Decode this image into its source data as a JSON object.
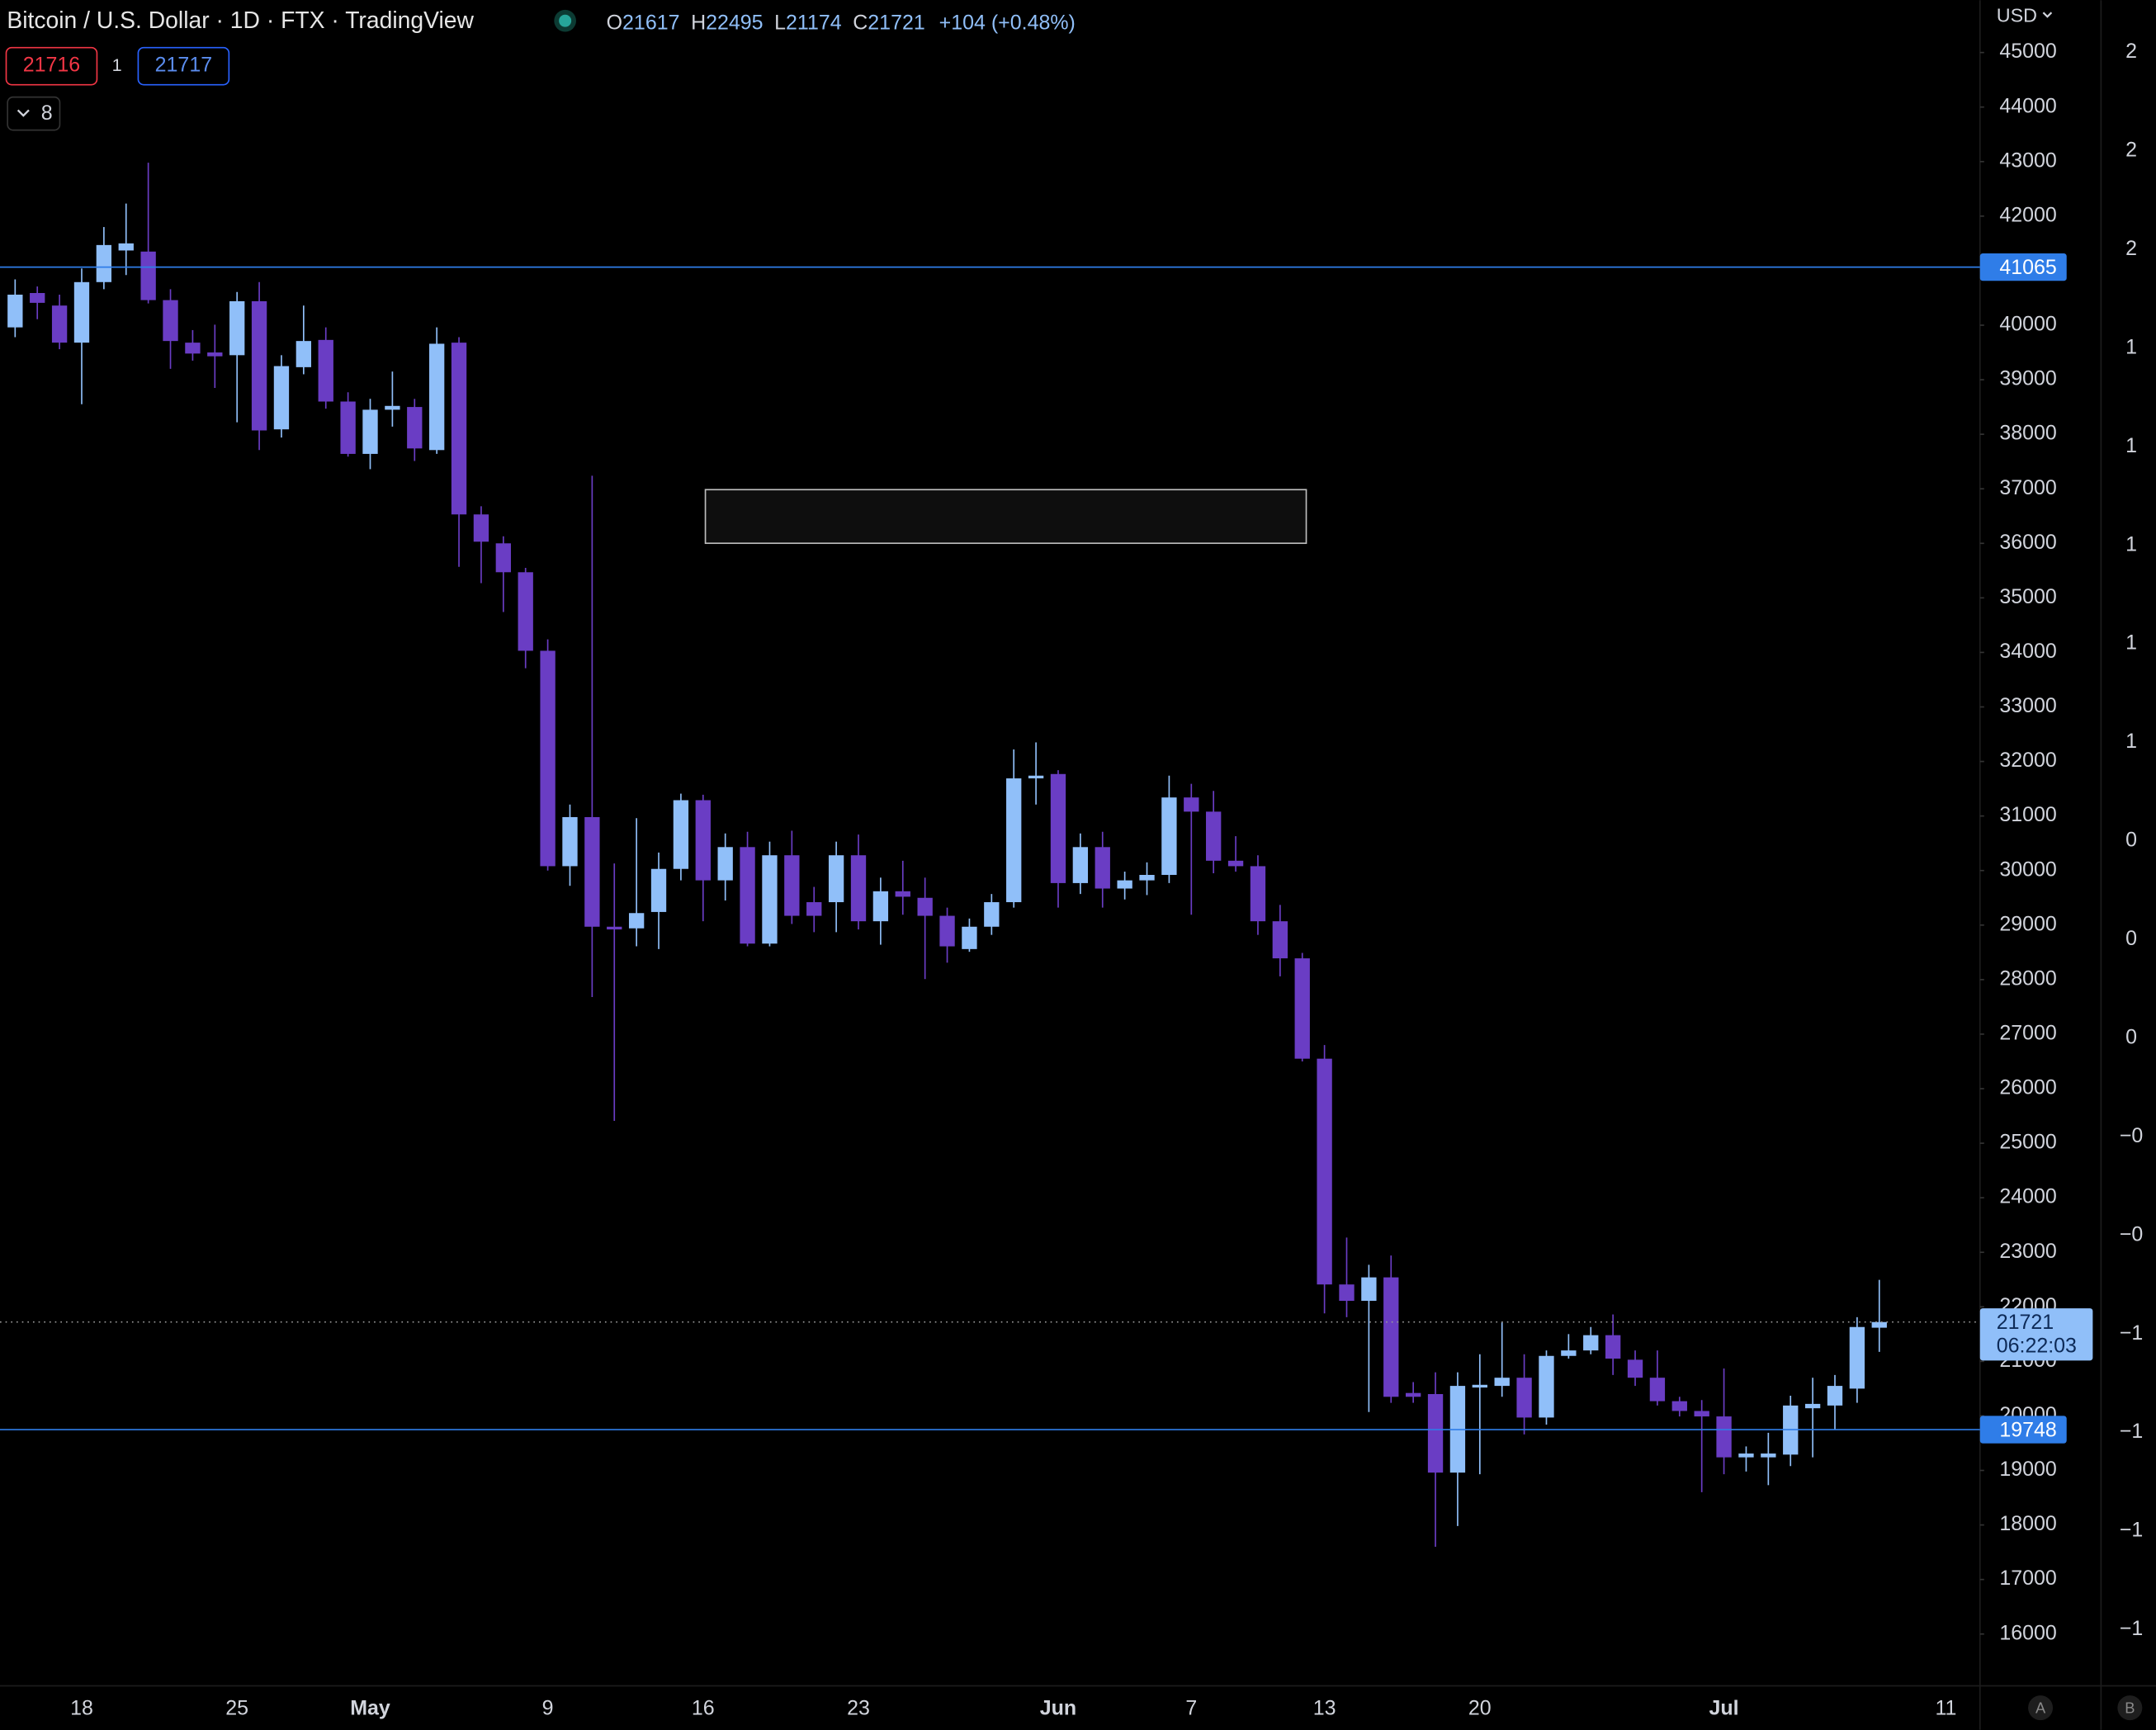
{
  "chart_data": {
    "type": "candlestick",
    "title": "Bitcoin / U.S. Dollar · 1D · FTX · TradingView",
    "ohlc_labels": [
      "O",
      "H",
      "L",
      "C"
    ],
    "change": "+104 (+0.48%)",
    "currency": "USD",
    "countdown": "06:22:03",
    "up_color": "#90bff9",
    "down_color": "#6a3dc4",
    "line_color": "#2f7de8",
    "grid": false,
    "ylim": [
      15050,
      45960
    ],
    "yticks": [
      16000,
      17000,
      18000,
      19000,
      20000,
      21000,
      22000,
      23000,
      24000,
      25000,
      26000,
      27000,
      28000,
      29000,
      30000,
      31000,
      32000,
      33000,
      34000,
      35000,
      36000,
      37000,
      38000,
      39000,
      40000,
      41000,
      42000,
      43000,
      44000,
      45000
    ],
    "hlines": [
      41065,
      19748
    ],
    "categories": [
      null,
      null,
      null,
      "18",
      null,
      null,
      null,
      null,
      null,
      null,
      "25",
      null,
      null,
      null,
      null,
      null,
      "May",
      null,
      null,
      null,
      null,
      null,
      null,
      null,
      "9",
      null,
      null,
      null,
      null,
      null,
      null,
      "16",
      null,
      null,
      null,
      null,
      null,
      null,
      "23",
      null,
      null,
      null,
      null,
      null,
      null,
      null,
      null,
      "Jun",
      null,
      null,
      null,
      null,
      null,
      "7",
      null,
      null,
      null,
      null,
      null,
      "13",
      null,
      null,
      null,
      null,
      null,
      null,
      "20",
      null,
      null,
      null,
      null,
      null,
      null,
      null,
      null,
      null,
      null,
      "Jul",
      null,
      null,
      null,
      null,
      null,
      null,
      null,
      null,
      null,
      "11"
    ],
    "open": [
      39960,
      40590,
      40360,
      39680,
      40790,
      41370,
      41350,
      40460,
      39680,
      39500,
      39450,
      40440,
      38090,
      39230,
      39730,
      38600,
      37640,
      38450,
      38500,
      37710,
      39680,
      36530,
      36000,
      35470,
      34030,
      30080,
      30980,
      28970,
      28940,
      29240,
      30030,
      31290,
      29820,
      30430,
      28660,
      30280,
      29420,
      29420,
      30280,
      29070,
      29620,
      29500,
      29170,
      28560,
      28970,
      29420,
      31690,
      31770,
      29770,
      30430,
      29670,
      29820,
      29920,
      31340,
      31080,
      30180,
      30080,
      29070,
      28390,
      26550,
      22410,
      22110,
      22540,
      20420,
      20400,
      18960,
      20520,
      20550,
      20700,
      19970,
      21100,
      21200,
      21480,
      21030,
      20700,
      20270,
      20090,
      19990,
      19240,
      19240,
      19290,
      20140,
      20190,
      20500,
      21617,
      null,
      null,
      null
    ],
    "high": [
      40840,
      40710,
      40560,
      41040,
      41800,
      42230,
      42980,
      40660,
      39910,
      40010,
      40610,
      40790,
      39450,
      40360,
      39960,
      38770,
      38650,
      39150,
      38650,
      39960,
      39780,
      36680,
      36130,
      35550,
      34240,
      31210,
      37240,
      30130,
      30960,
      30330,
      31410,
      31390,
      30680,
      30710,
      30530,
      30730,
      29700,
      30530,
      30660,
      29870,
      30180,
      29870,
      29320,
      29120,
      29570,
      32220,
      32350,
      31840,
      30680,
      30710,
      29980,
      30150,
      31740,
      31590,
      31460,
      30630,
      30280,
      29370,
      28490,
      26800,
      23270,
      22770,
      22940,
      20620,
      20800,
      20800,
      21130,
      21710,
      21130,
      21200,
      21500,
      21630,
      21860,
      21200,
      21200,
      20350,
      20290,
      20870,
      19440,
      19690,
      20370,
      20700,
      20750,
      21810,
      22495,
      null,
      null,
      null
    ],
    "low": [
      39780,
      40110,
      39560,
      38550,
      40660,
      40920,
      40400,
      39200,
      39350,
      38850,
      38220,
      37710,
      37940,
      39100,
      38470,
      37590,
      37360,
      38140,
      37510,
      37640,
      35570,
      35270,
      34740,
      33710,
      30000,
      29720,
      27680,
      25410,
      28610,
      28560,
      29820,
      29070,
      29450,
      28610,
      28610,
      29020,
      28870,
      28870,
      28920,
      28640,
      29190,
      28010,
      28310,
      28510,
      28820,
      29320,
      31210,
      29320,
      29570,
      29320,
      29470,
      29550,
      29770,
      29190,
      29950,
      29980,
      28820,
      28060,
      26500,
      21880,
      21810,
      20070,
      20240,
      20240,
      17600,
      17980,
      18930,
      20350,
      19660,
      19840,
      21050,
      21130,
      20750,
      20550,
      20190,
      19990,
      18600,
      18930,
      18980,
      18730,
      19080,
      19240,
      19740,
      20240,
      21174,
      null,
      null,
      null
    ],
    "close": [
      40560,
      40410,
      39680,
      40790,
      41470,
      41500,
      40460,
      39710,
      39480,
      39430,
      40440,
      38070,
      39250,
      39710,
      38600,
      37640,
      38450,
      38520,
      37740,
      39660,
      36530,
      36030,
      35470,
      34030,
      30080,
      30980,
      28970,
      28920,
      29220,
      30030,
      31290,
      29820,
      30430,
      28660,
      30280,
      29170,
      29170,
      30280,
      29070,
      29620,
      29520,
      29170,
      28610,
      28970,
      29420,
      31690,
      31740,
      29770,
      30430,
      29670,
      29820,
      29920,
      31340,
      31080,
      30180,
      30080,
      29070,
      28390,
      26550,
      22410,
      22110,
      22540,
      20350,
      20350,
      18960,
      20550,
      20570,
      20700,
      19970,
      21100,
      21200,
      21480,
      21050,
      20700,
      20270,
      20090,
      19990,
      19240,
      19310,
      19310,
      20190,
      20220,
      20550,
      21630,
      21721,
      null,
      null,
      null
    ],
    "right_scale_labels": [
      "2",
      "2",
      "2",
      "1",
      "1",
      "1",
      "1",
      "1",
      "0",
      "0",
      "0",
      "−0",
      "−0",
      "−1",
      "−1",
      "−1",
      "−1"
    ]
  },
  "toolbar": {
    "sell_price": 21716,
    "quantity": 1,
    "buy_price": 21717,
    "indicators_count": 8,
    "scale_buttons": [
      "A",
      "B"
    ]
  }
}
